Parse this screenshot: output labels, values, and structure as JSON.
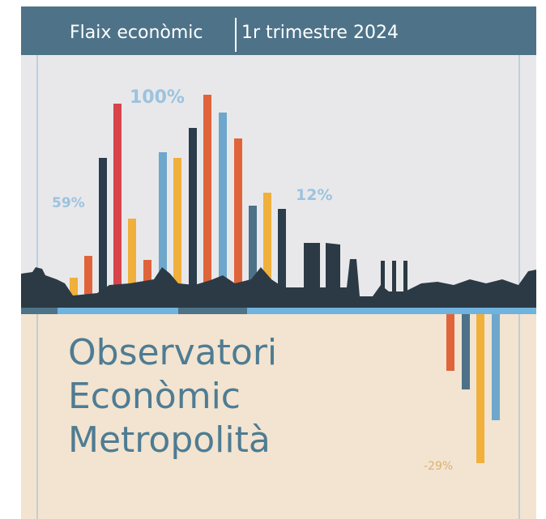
{
  "header": {
    "title": "Flaix econòmic",
    "period": "1r trimestre 2024"
  },
  "labels": {
    "top_left": "59%",
    "top_peak": "100%",
    "top_right": "12%",
    "bottom": "-29%"
  },
  "title_lines": [
    "Observatori",
    "Econòmic",
    "Metropolità"
  ]
}
